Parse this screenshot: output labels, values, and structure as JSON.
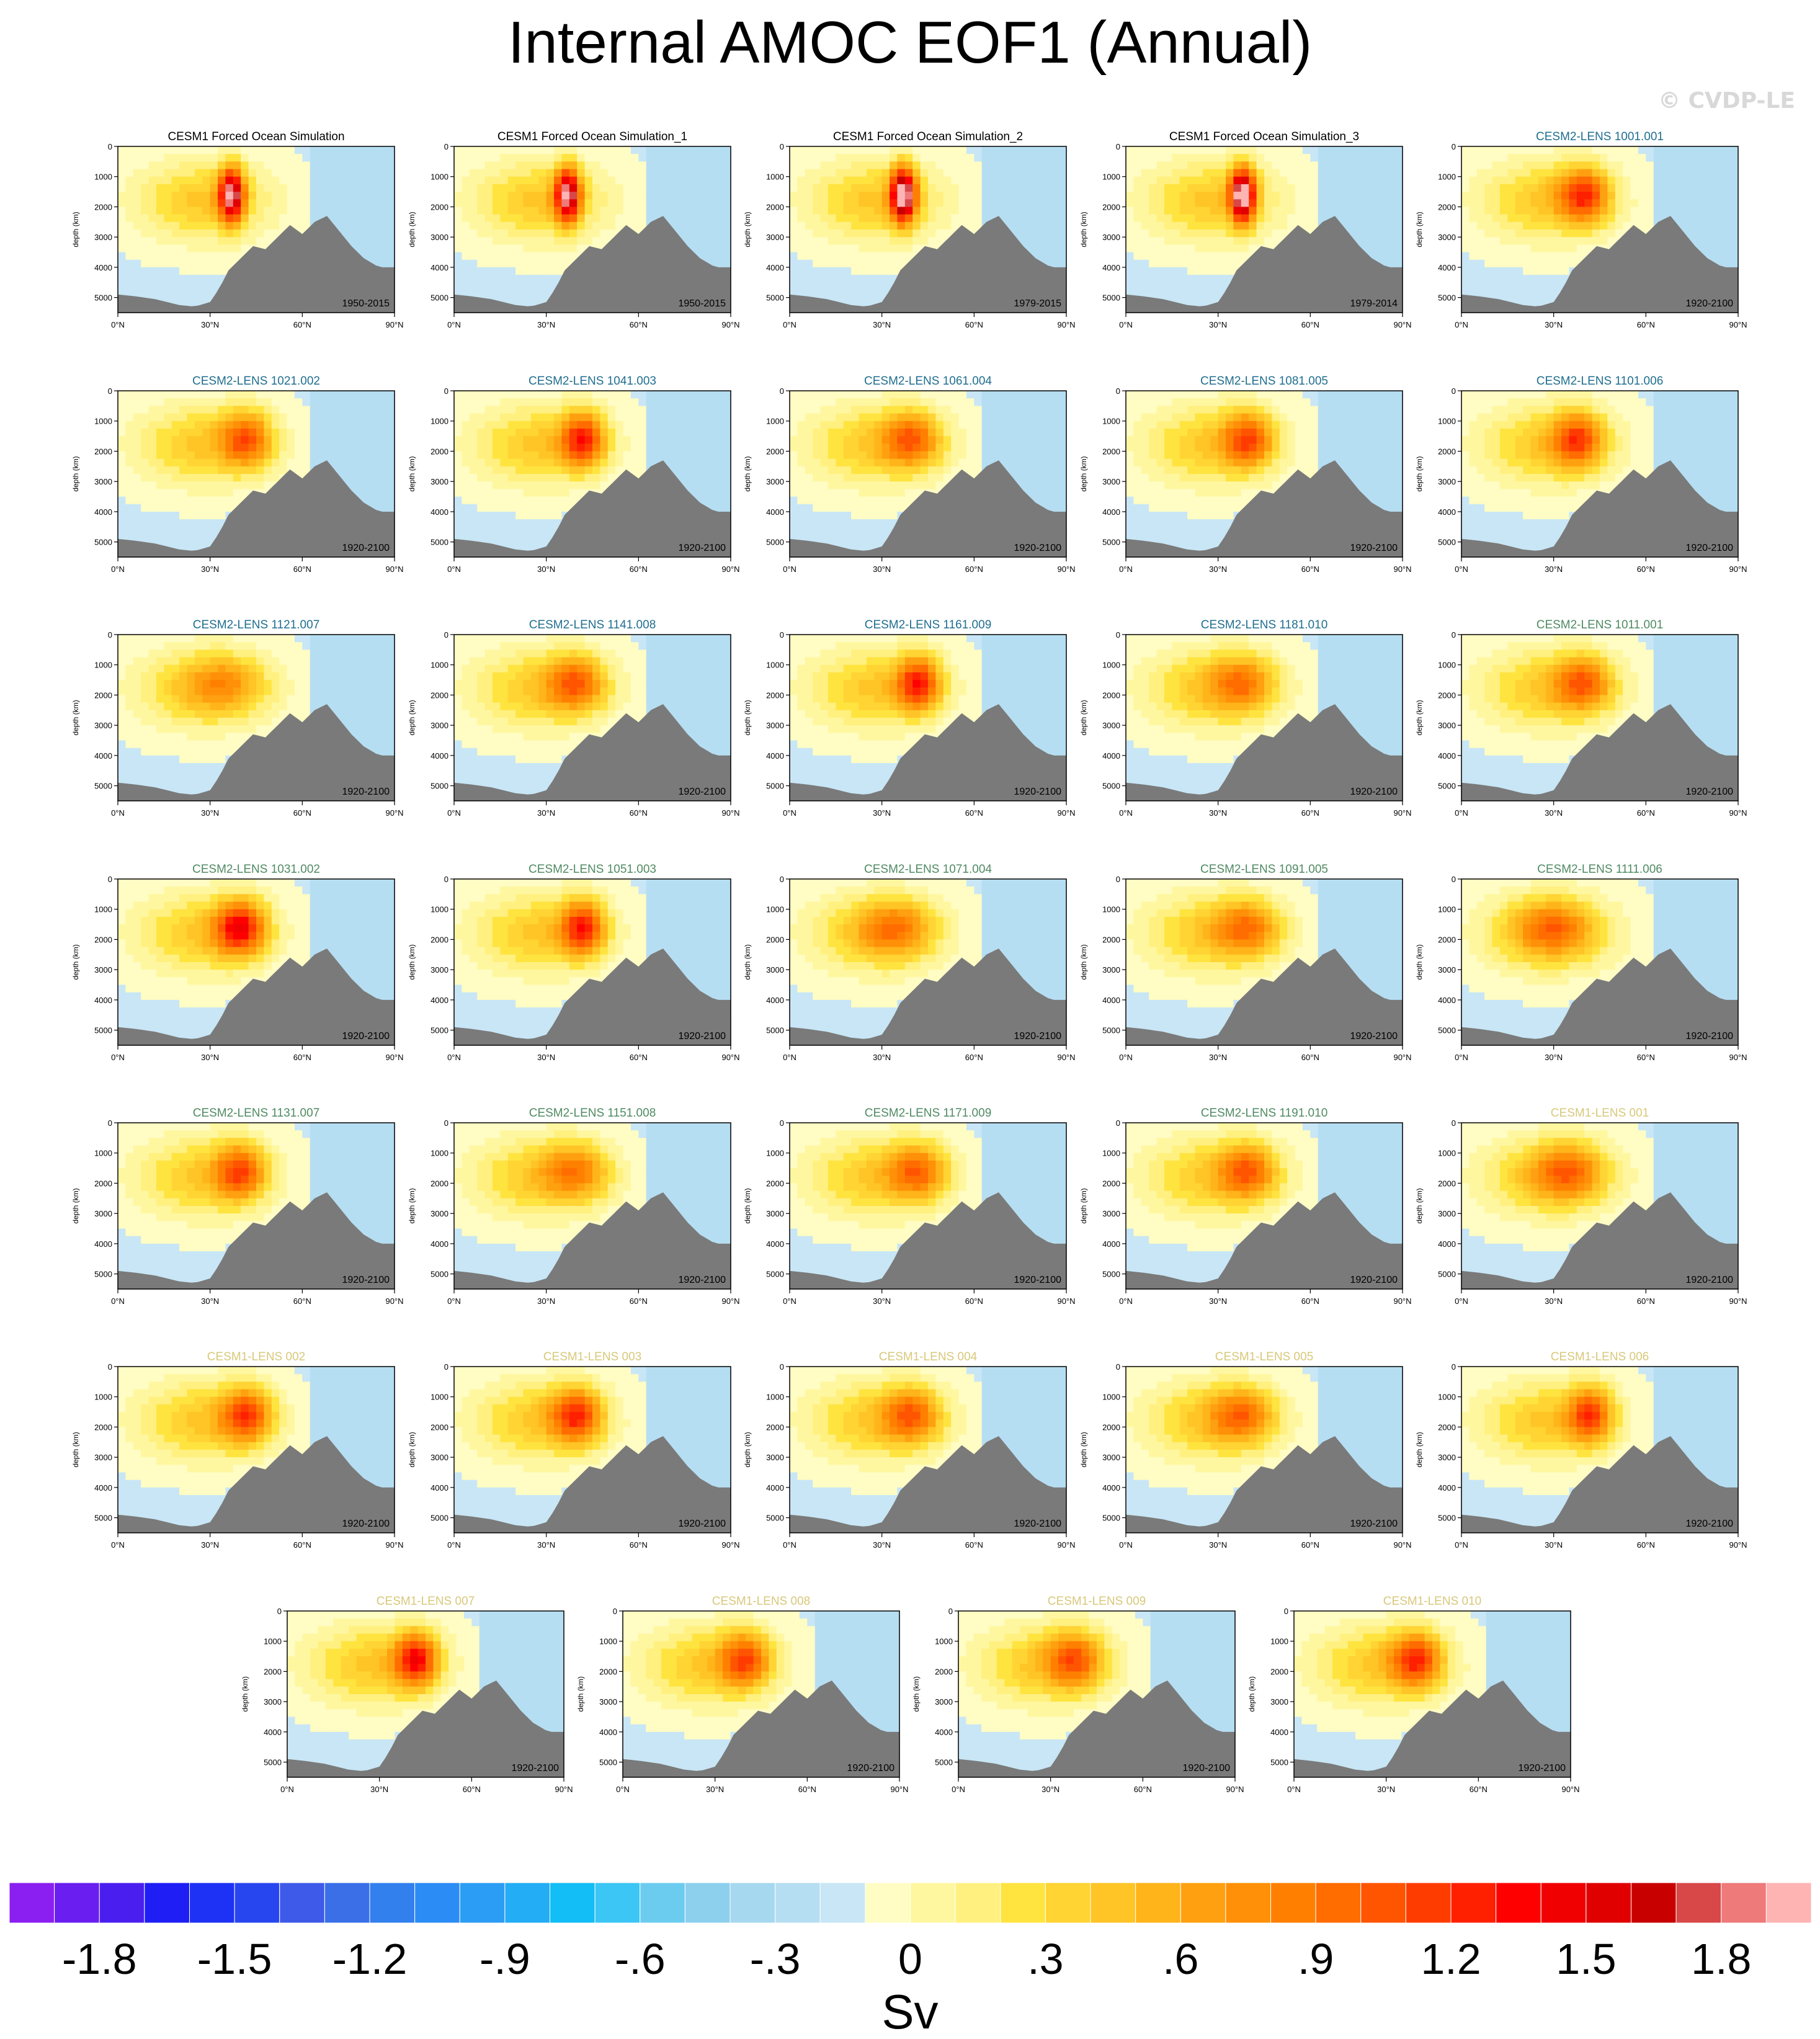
{
  "title": "Internal AMOC EOF1 (Annual)",
  "watermark": "© CVDP-LE",
  "chart_data": {
    "type": "heatmap",
    "xlabel": "",
    "ylabel": "depth (km)",
    "x_ticks": [
      "0°N",
      "30°N",
      "60°N",
      "90°N"
    ],
    "y_ticks": [
      "0",
      "1000",
      "2000",
      "3000",
      "4000",
      "5000"
    ],
    "xlim": [
      0,
      90
    ],
    "ylim": [
      5500,
      0
    ],
    "colorbar": {
      "label": "Sv",
      "tick_labels": [
        "-1.8",
        "-1.5",
        "-1.2",
        "-.9",
        "-.6",
        "-.3",
        "0",
        ".3",
        ".6",
        ".9",
        "1.2",
        "1.5",
        "1.8"
      ],
      "colors": [
        "#8b1ef0",
        "#6a1ef0",
        "#4b1ef0",
        "#1e1ef5",
        "#1e32f5",
        "#2846ef",
        "#3d5ae8",
        "#3a6fe8",
        "#3280ee",
        "#2b8cf5",
        "#2c9df5",
        "#23adf5",
        "#13bdf5",
        "#3cc6f5",
        "#6cccf0",
        "#8dd0ee",
        "#a6d8ef",
        "#b6def2",
        "#c8e6f5",
        "#fffcc4",
        "#fff7a0",
        "#fff080",
        "#ffe440",
        "#ffd433",
        "#ffc426",
        "#ffb41a",
        "#ffa010",
        "#ff9008",
        "#ff8000",
        "#ff6c00",
        "#ff5400",
        "#ff3c00",
        "#ff2000",
        "#ff0000",
        "#f00000",
        "#e00000",
        "#c80000",
        "#d84848",
        "#ee7a7a",
        "#ffb4b4"
      ]
    },
    "panels": [
      {
        "title": "CESM1 Forced Ocean Simulation",
        "years": "1950-2015",
        "group": "black",
        "peak_lat": 37,
        "peak_strength": 1.7,
        "width": 4
      },
      {
        "title": "CESM1 Forced Ocean Simulation_1",
        "years": "1950-2015",
        "group": "black",
        "peak_lat": 37,
        "peak_strength": 1.7,
        "width": 4
      },
      {
        "title": "CESM1 Forced Ocean Simulation_2",
        "years": "1979-2015",
        "group": "black",
        "peak_lat": 37,
        "peak_strength": 1.9,
        "width": 4
      },
      {
        "title": "CESM1 Forced Ocean Simulation_3",
        "years": "1979-2014",
        "group": "black",
        "peak_lat": 38,
        "peak_strength": 1.9,
        "width": 4
      },
      {
        "title": "CESM2-LENS 1001.001",
        "years": "1920-2100",
        "group": "teal",
        "peak_lat": 40,
        "peak_strength": 1.0,
        "width": 8
      },
      {
        "title": "CESM2-LENS 1021.002",
        "years": "1920-2100",
        "group": "teal",
        "peak_lat": 42,
        "peak_strength": 0.9,
        "width": 8
      },
      {
        "title": "CESM2-LENS 1041.003",
        "years": "1920-2100",
        "group": "teal",
        "peak_lat": 42,
        "peak_strength": 1.1,
        "width": 7
      },
      {
        "title": "CESM2-LENS 1061.004",
        "years": "1920-2100",
        "group": "teal",
        "peak_lat": 40,
        "peak_strength": 0.8,
        "width": 9
      },
      {
        "title": "CESM2-LENS 1081.005",
        "years": "1920-2100",
        "group": "teal",
        "peak_lat": 40,
        "peak_strength": 0.9,
        "width": 8
      },
      {
        "title": "CESM2-LENS 1101.006",
        "years": "1920-2100",
        "group": "teal",
        "peak_lat": 38,
        "peak_strength": 0.9,
        "width": 8
      },
      {
        "title": "CESM2-LENS 1121.007",
        "years": "1920-2100",
        "group": "teal",
        "peak_lat": 35,
        "peak_strength": 0.45,
        "width": 12
      },
      {
        "title": "CESM2-LENS 1141.008",
        "years": "1920-2100",
        "group": "teal",
        "peak_lat": 40,
        "peak_strength": 0.8,
        "width": 9
      },
      {
        "title": "CESM2-LENS 1161.009",
        "years": "1920-2100",
        "group": "teal",
        "peak_lat": 42,
        "peak_strength": 1.1,
        "width": 7
      },
      {
        "title": "CESM2-LENS 1181.010",
        "years": "1920-2100",
        "group": "teal",
        "peak_lat": 38,
        "peak_strength": 0.65,
        "width": 10
      },
      {
        "title": "CESM2-LENS 1011.001",
        "years": "1920-2100",
        "group": "green",
        "peak_lat": 40,
        "peak_strength": 0.8,
        "width": 9
      },
      {
        "title": "CESM2-LENS 1031.002",
        "years": "1920-2100",
        "group": "green",
        "peak_lat": 40,
        "peak_strength": 1.2,
        "width": 8
      },
      {
        "title": "CESM2-LENS 1051.003",
        "years": "1920-2100",
        "group": "green",
        "peak_lat": 42,
        "peak_strength": 1.1,
        "width": 7
      },
      {
        "title": "CESM2-LENS 1071.004",
        "years": "1920-2100",
        "group": "green",
        "peak_lat": 35,
        "peak_strength": 0.6,
        "width": 11
      },
      {
        "title": "CESM2-LENS 1091.005",
        "years": "1920-2100",
        "group": "green",
        "peak_lat": 40,
        "peak_strength": 0.7,
        "width": 10
      },
      {
        "title": "CESM2-LENS 1111.006",
        "years": "1920-2100",
        "group": "green",
        "peak_lat": 30,
        "peak_strength": 0.6,
        "width": 12
      },
      {
        "title": "CESM2-LENS 1131.007",
        "years": "1920-2100",
        "group": "green",
        "peak_lat": 40,
        "peak_strength": 0.9,
        "width": 8
      },
      {
        "title": "CESM2-LENS 1151.008",
        "years": "1920-2100",
        "group": "green",
        "peak_lat": 40,
        "peak_strength": 0.65,
        "width": 10
      },
      {
        "title": "CESM2-LENS 1171.009",
        "years": "1920-2100",
        "group": "green",
        "peak_lat": 42,
        "peak_strength": 0.8,
        "width": 9
      },
      {
        "title": "CESM2-LENS 1191.010",
        "years": "1920-2100",
        "group": "green",
        "peak_lat": 40,
        "peak_strength": 0.8,
        "width": 9
      },
      {
        "title": "CESM1-LENS 001",
        "years": "1920-2100",
        "group": "tan",
        "peak_lat": 35,
        "peak_strength": 0.7,
        "width": 11
      },
      {
        "title": "CESM1-LENS 002",
        "years": "1920-2100",
        "group": "tan",
        "peak_lat": 42,
        "peak_strength": 1.0,
        "width": 8
      },
      {
        "title": "CESM1-LENS 003",
        "years": "1920-2100",
        "group": "tan",
        "peak_lat": 40,
        "peak_strength": 1.0,
        "width": 8
      },
      {
        "title": "CESM1-LENS 004",
        "years": "1920-2100",
        "group": "tan",
        "peak_lat": 40,
        "peak_strength": 0.8,
        "width": 9
      },
      {
        "title": "CESM1-LENS 005",
        "years": "1920-2100",
        "group": "tan",
        "peak_lat": 38,
        "peak_strength": 0.7,
        "width": 10
      },
      {
        "title": "CESM1-LENS 006",
        "years": "1920-2100",
        "group": "tan",
        "peak_lat": 42,
        "peak_strength": 1.0,
        "width": 7
      },
      {
        "title": "CESM1-LENS 007",
        "years": "1920-2100",
        "group": "tan",
        "peak_lat": 42,
        "peak_strength": 1.2,
        "width": 7
      },
      {
        "title": "CESM1-LENS 008",
        "years": "1920-2100",
        "group": "tan",
        "peak_lat": 40,
        "peak_strength": 0.9,
        "width": 8
      },
      {
        "title": "CESM1-LENS 009",
        "years": "1920-2100",
        "group": "tan",
        "peak_lat": 38,
        "peak_strength": 0.8,
        "width": 9
      },
      {
        "title": "CESM1-LENS 010",
        "years": "1920-2100",
        "group": "tan",
        "peak_lat": 40,
        "peak_strength": 1.0,
        "width": 8
      }
    ],
    "title_colors": {
      "black": "#000000",
      "teal": "#1f6e8f",
      "green": "#4f8a62",
      "tan": "#d8c87a"
    },
    "land_color": "#7a7a7a",
    "negative_color": "#c8e6f5"
  }
}
